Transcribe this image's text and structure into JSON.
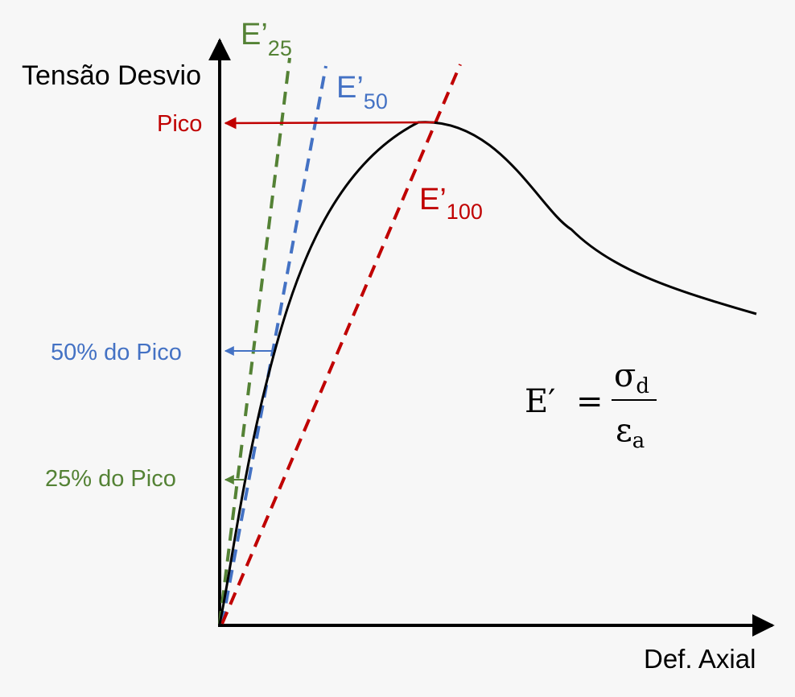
{
  "colors": {
    "background": "#f7f7f7",
    "axis": "#000000",
    "curve": "#000000",
    "e25": "#548235",
    "e50": "#4472c4",
    "e100": "#c00000"
  },
  "labels": {
    "y_axis": "Tensão Desvio",
    "x_axis": "Def. Axial",
    "peak": "Pico",
    "peak_50": "50% do Pico",
    "peak_25": "25% do Pico"
  },
  "moduli": {
    "e25": {
      "base": "E’",
      "sub": "25"
    },
    "e50": {
      "base": "E’",
      "sub": "50"
    },
    "e100": {
      "base": "E’",
      "sub": "100"
    }
  },
  "formula": {
    "lhs": "E′",
    "equals": "=",
    "numerator_base": "σ",
    "numerator_sub": "d",
    "denominator_base": "ε",
    "denominator_sub": "a"
  }
}
